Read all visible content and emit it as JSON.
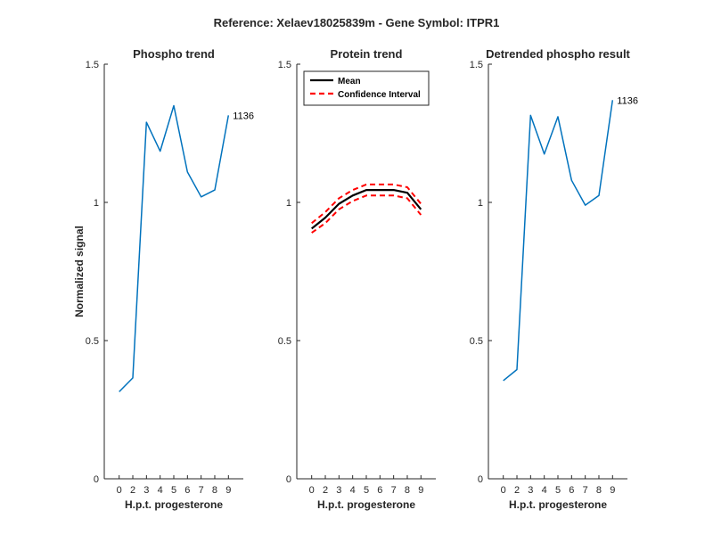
{
  "figure": {
    "title": "Reference:  Xelaev18025839m - Gene Symbol:  ITPR1",
    "line_color": "#0072BD",
    "mean_color": "#000000",
    "ci_color": "#FF0000"
  },
  "chart_data": [
    {
      "type": "line",
      "title": "Phospho trend",
      "xlabel": "H.p.t. progesterone",
      "ylabel": "Normalized signal",
      "x_ticks": [
        "0",
        "2",
        "3",
        "4",
        "5",
        "6",
        "7",
        "8",
        "9"
      ],
      "y_ticks": [
        "0",
        "0.5",
        "1",
        "1.5"
      ],
      "ylim": [
        0,
        1.5
      ],
      "grid": false,
      "series": [
        {
          "values": [
            0.315,
            0.365,
            1.29,
            1.185,
            1.35,
            1.11,
            1.02,
            1.045,
            1.315
          ]
        }
      ],
      "annotation": "1136"
    },
    {
      "type": "line",
      "title": "Protein trend",
      "xlabel": "H.p.t. progesterone",
      "x_ticks": [
        "0",
        "2",
        "3",
        "4",
        "5",
        "6",
        "7",
        "8",
        "9"
      ],
      "y_ticks": [
        "0",
        "0.5",
        "1",
        "1.5"
      ],
      "ylim": [
        0,
        1.5
      ],
      "grid": false,
      "legend": "top-left",
      "series": [
        {
          "name": "Mean",
          "style": "solid",
          "values": [
            0.905,
            0.945,
            0.995,
            1.025,
            1.045,
            1.045,
            1.045,
            1.035,
            0.975
          ]
        },
        {
          "name": "Confidence Interval",
          "style": "dashed",
          "values": [
            0.925,
            0.965,
            1.015,
            1.045,
            1.065,
            1.065,
            1.065,
            1.055,
            0.995
          ]
        },
        {
          "style": "dashed",
          "values": [
            0.89,
            0.925,
            0.975,
            1.005,
            1.025,
            1.025,
            1.025,
            1.015,
            0.955
          ]
        }
      ]
    },
    {
      "type": "line",
      "title": "Detrended phospho result",
      "xlabel": "H.p.t. progesterone",
      "x_ticks": [
        "0",
        "2",
        "3",
        "4",
        "5",
        "6",
        "7",
        "8",
        "9"
      ],
      "y_ticks": [
        "0",
        "0.5",
        "1",
        "1.5"
      ],
      "ylim": [
        0,
        1.5
      ],
      "grid": false,
      "series": [
        {
          "values": [
            0.355,
            0.395,
            1.315,
            1.175,
            1.31,
            1.08,
            0.99,
            1.025,
            1.37
          ]
        }
      ],
      "annotation": "1136"
    }
  ]
}
